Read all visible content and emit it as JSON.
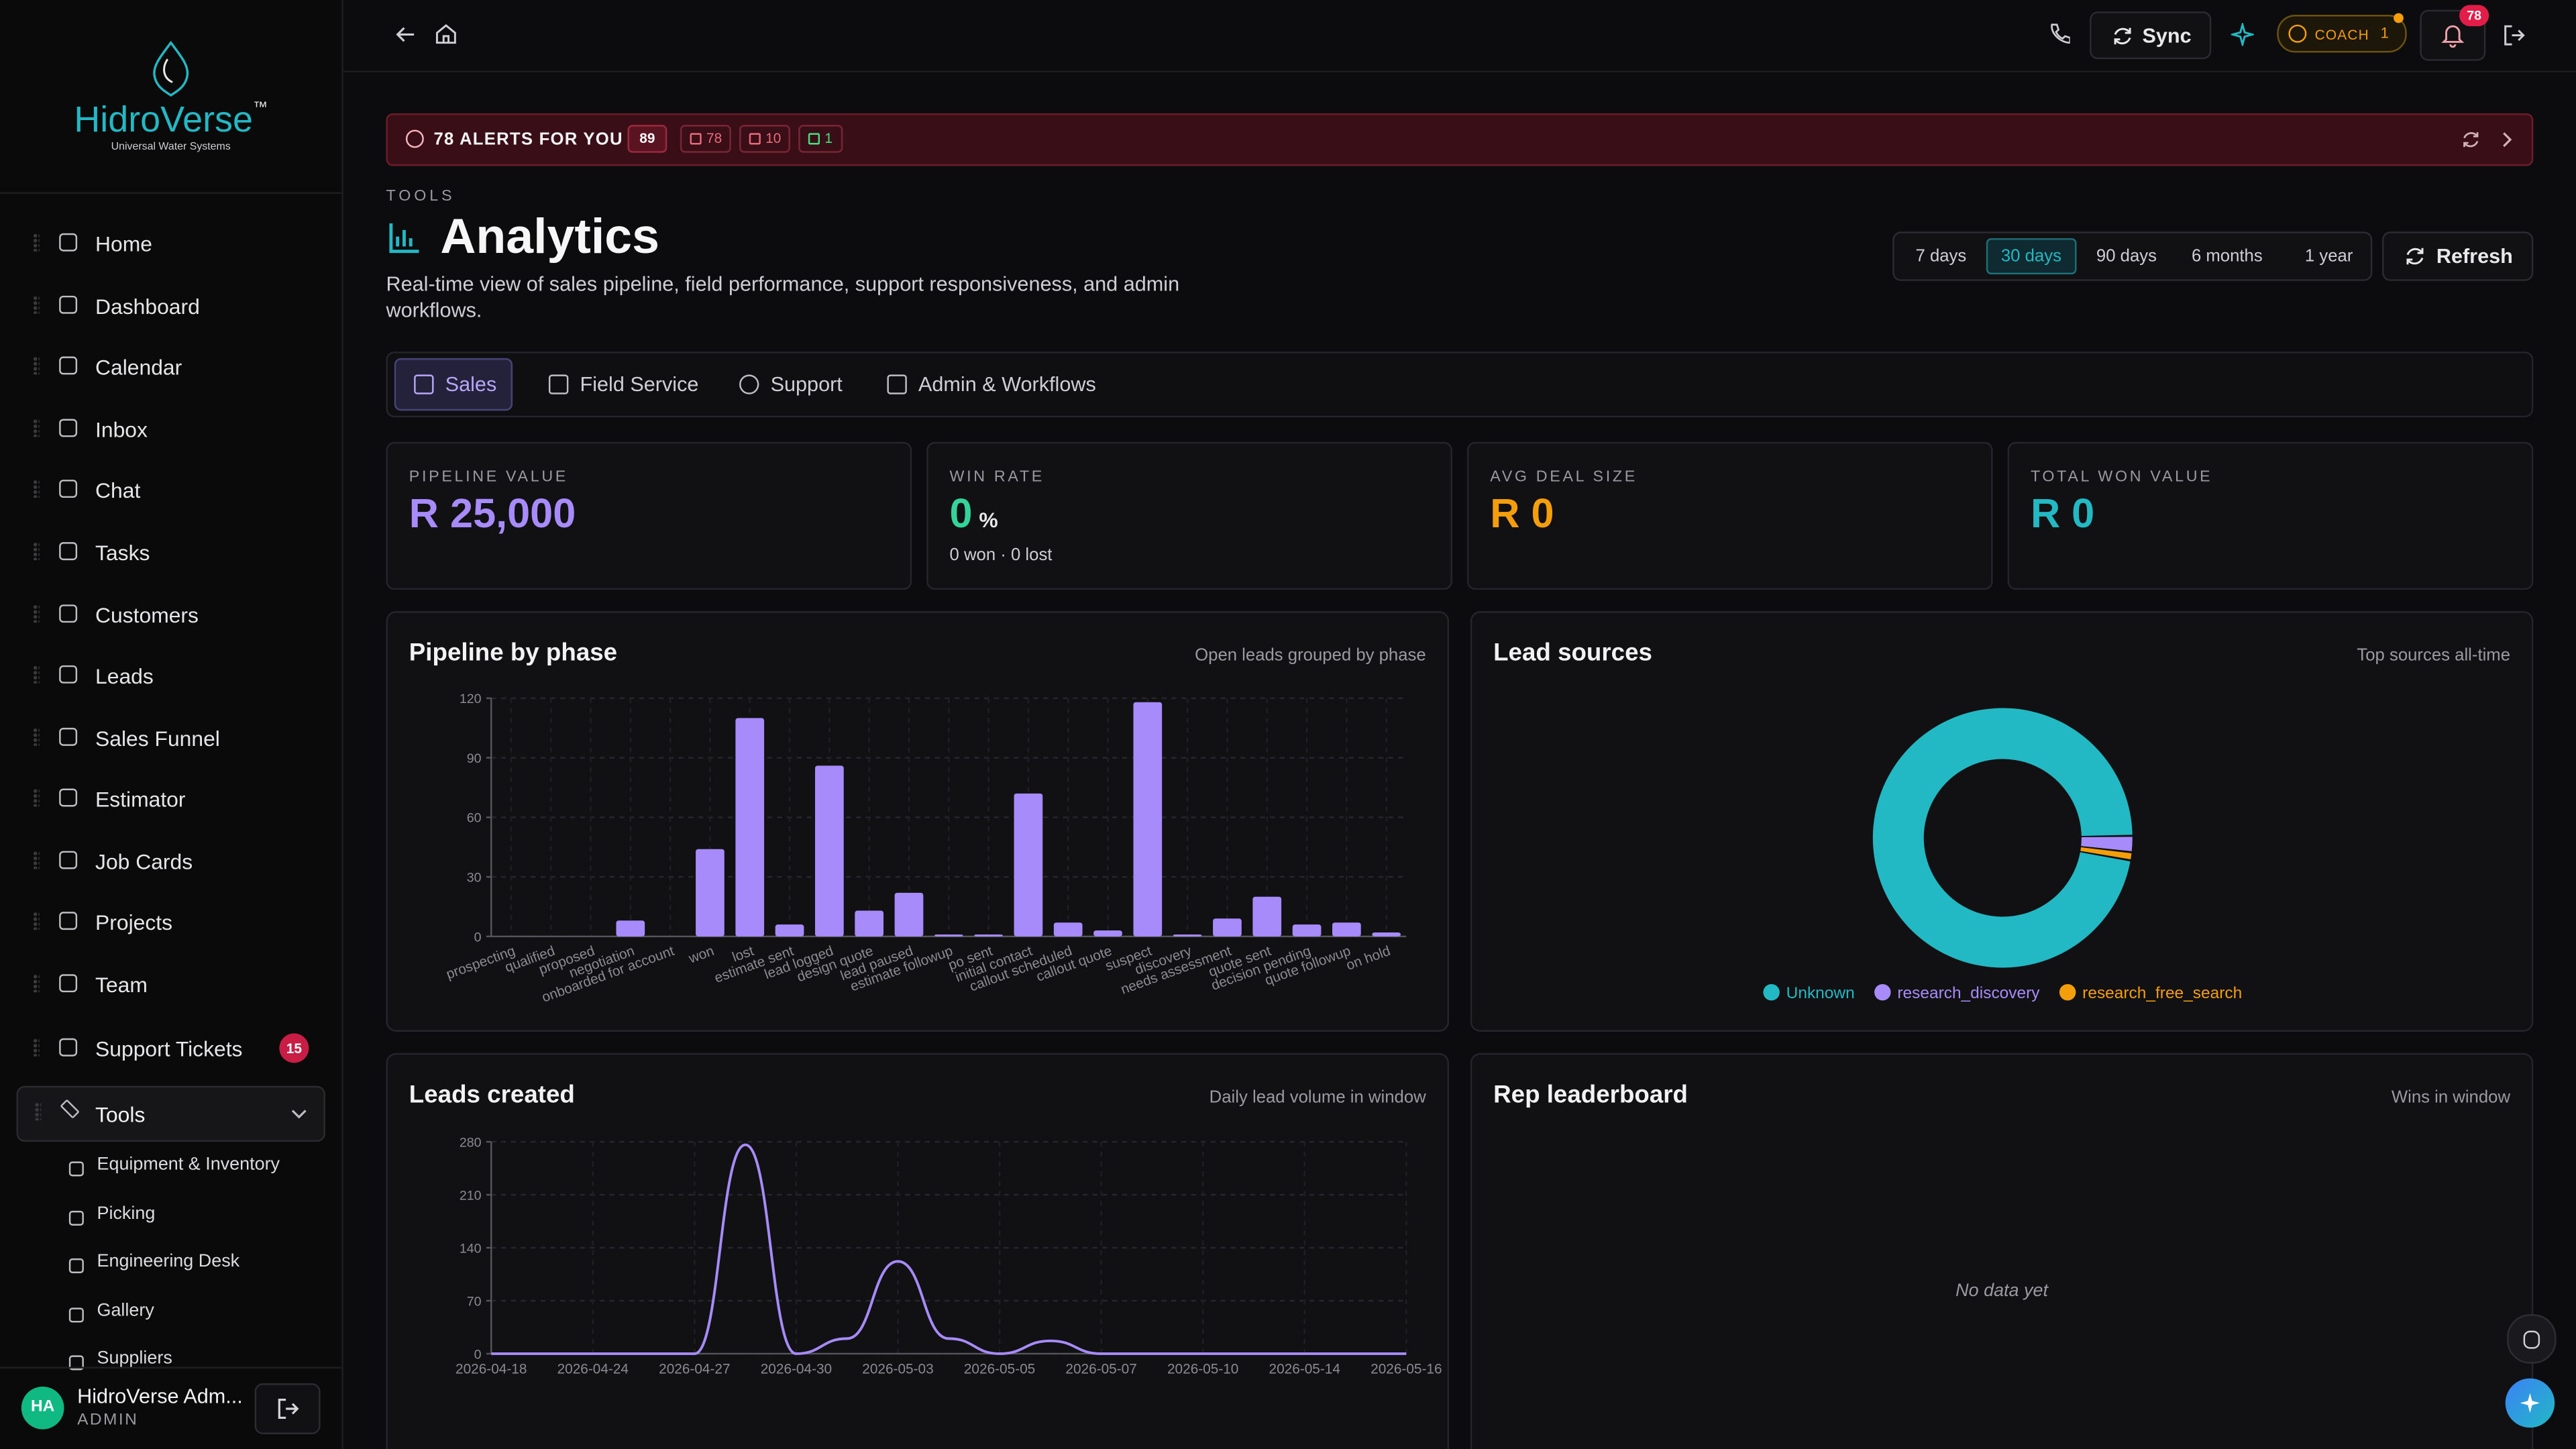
{
  "sidebar": {
    "brand_a": "Hidro",
    "brand_b": "Verse",
    "brand_mark": "™",
    "tagline": "Universal Water Systems",
    "nav": [
      "Home",
      "Dashboard",
      "Calendar",
      "Inbox",
      "Chat",
      "Tasks",
      "Customers",
      "Leads",
      "Sales Funnel",
      "Estimator",
      "Job Cards",
      "Projects",
      "Team",
      "Support Tickets"
    ],
    "support_badge": "15",
    "tools": "Tools",
    "tools_children": [
      "Equipment & Inventory",
      "Picking",
      "Engineering Desk",
      "Gallery",
      "Suppliers"
    ],
    "user": {
      "initials": "HA",
      "name": "HidroVerse Adm...",
      "role": "ADMIN"
    }
  },
  "topbar": {
    "sync": "Sync",
    "coach": "COACH",
    "coach_count": "1",
    "notif_badge": "78"
  },
  "alerts": {
    "title": "78 ALERTS FOR YOU",
    "count": "89",
    "chips": [
      "78",
      "10",
      "1"
    ]
  },
  "page": {
    "eyebrow": "TOOLS",
    "title": "Analytics",
    "description": "Real-time view of sales pipeline, field performance, support responsiveness, and admin workflows.",
    "ranges": [
      "7 days",
      "30 days",
      "90 days",
      "6 months",
      "1 year"
    ],
    "active_range": "30 days",
    "refresh": "Refresh",
    "tabs": [
      "Sales",
      "Field Service",
      "Support",
      "Admin & Workflows"
    ]
  },
  "kpis": [
    {
      "label": "PIPELINE VALUE",
      "value": "R 25,000",
      "color": "#a78bfa"
    },
    {
      "label": "WIN RATE",
      "value": "0",
      "unit": "%",
      "sub": "0 won · 0 lost",
      "color": "#34d399"
    },
    {
      "label": "AVG DEAL SIZE",
      "value": "R 0",
      "color": "#f59e0b"
    },
    {
      "label": "TOTAL WON VALUE",
      "value": "R 0",
      "color": "#22b8c4"
    }
  ],
  "leaderboard": {
    "title": "Rep leaderboard",
    "subtitle": "Wins in window",
    "empty": "No data yet"
  },
  "chart_data": [
    {
      "type": "bar",
      "title": "Pipeline by phase",
      "subtitle": "Open leads grouped by phase",
      "categories": [
        "prospecting",
        "qualified",
        "proposed",
        "negotiation",
        "onboarded for account",
        "won",
        "lost",
        "estimate sent",
        "lead logged",
        "design quote",
        "lead paused",
        "estimate followup",
        "po sent",
        "initial contact",
        "callout scheduled",
        "callout quote",
        "suspect",
        "discovery",
        "needs assessment",
        "quote sent",
        "decision pending",
        "quote followup",
        "on hold"
      ],
      "values": [
        0,
        0,
        0,
        8,
        0,
        44,
        110,
        6,
        86,
        13,
        22,
        1,
        1,
        72,
        7,
        3,
        118,
        1,
        9,
        20,
        6,
        7,
        2
      ],
      "color": "#a78bfa",
      "ylim": [
        0,
        120
      ],
      "yticks": [
        0,
        30,
        60,
        90,
        120
      ],
      "grid": true
    },
    {
      "type": "pie",
      "title": "Lead sources",
      "subtitle": "Top sources all-time",
      "categories": [
        "Unknown",
        "research_discovery",
        "research_free_search"
      ],
      "values": [
        96,
        2,
        1
      ],
      "colors": [
        "#22b8c4",
        "#a78bfa",
        "#f59e0b"
      ],
      "legend": "bottom"
    },
    {
      "type": "line",
      "title": "Leads created",
      "subtitle": "Daily lead volume in window",
      "categories": [
        "2026-04-18",
        null,
        "2026-04-24",
        null,
        "2026-04-27",
        null,
        "2026-04-30",
        null,
        "2026-05-03",
        null,
        "2026-05-05",
        null,
        "2026-05-07",
        null,
        "2026-05-10",
        null,
        "2026-05-14",
        null,
        "2026-05-16"
      ],
      "values": [
        0,
        0,
        0,
        0,
        0,
        276,
        0,
        20,
        122,
        20,
        0,
        17,
        0,
        0,
        0,
        0,
        0,
        0,
        0
      ],
      "color": "#a78bfa",
      "ylim": [
        0,
        280
      ],
      "yticks": [
        0,
        70,
        140,
        210,
        280
      ],
      "grid": true
    }
  ]
}
